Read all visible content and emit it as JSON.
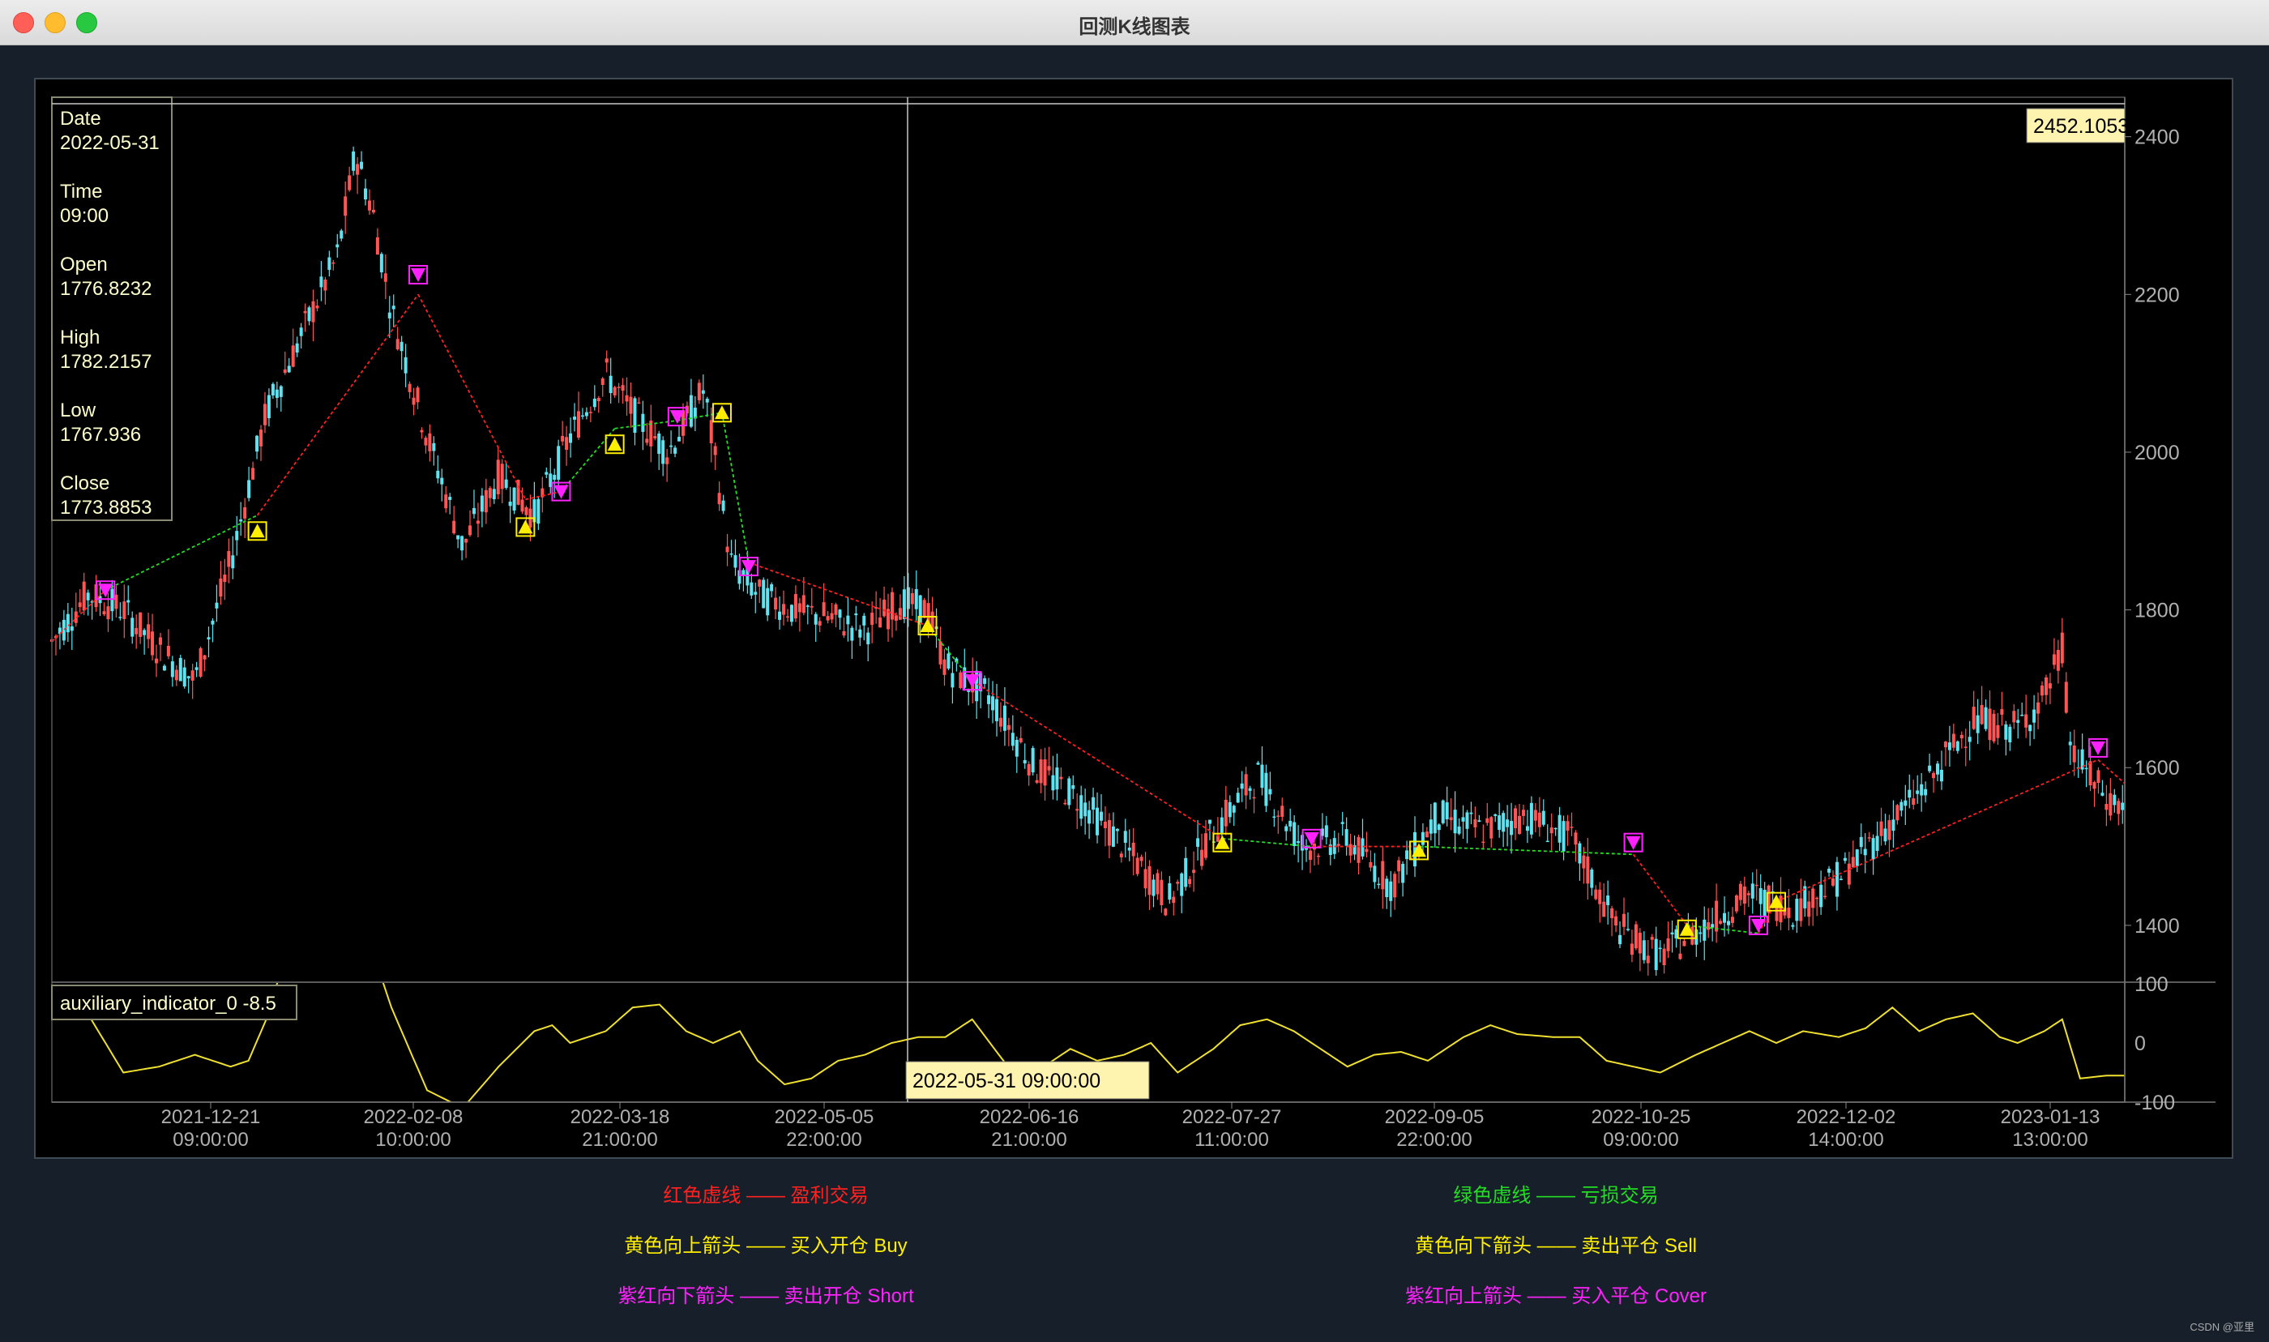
{
  "window": {
    "title": "回测K线图表",
    "traffic_lights": {
      "close": "#ff5f57",
      "minimize": "#febc2e",
      "zoom": "#28c840"
    }
  },
  "colors": {
    "background": "#17202a",
    "plot_background": "#000000",
    "candle_up": "#ff5555",
    "candle_down": "#5fe3f0",
    "profit_line": "#ff2020",
    "loss_line": "#20e020",
    "buy_marker": "#ffee00",
    "short_marker": "#ff22ff",
    "indicator_line": "#f0e030",
    "tooltip_bg": "#fff3b0",
    "axis_text": "#b0b0b0"
  },
  "info_panel": {
    "date_label": "Date",
    "date_value": "2022-05-31",
    "time_label": "Time",
    "time_value": "09:00",
    "open_label": "Open",
    "open_value": "1776.8232",
    "high_label": "High",
    "high_value": "1782.2157",
    "low_label": "Low",
    "low_value": "1767.936",
    "close_label": "Close",
    "close_value": "1773.8853"
  },
  "crosshair": {
    "price_label": "2452.1053",
    "time_label": "2022-05-31 09:00:00"
  },
  "indicator_label": "auxiliary_indicator_0 -8.5",
  "chart_data": {
    "type": "candlestick",
    "x_ticks": [
      {
        "date": "2021-12-21",
        "time": "09:00:00"
      },
      {
        "date": "2022-02-08",
        "time": "10:00:00"
      },
      {
        "date": "2022-03-18",
        "time": "21:00:00"
      },
      {
        "date": "2022-05-05",
        "time": "22:00:00"
      },
      {
        "date": "2022-06-16",
        "time": "21:00:00"
      },
      {
        "date": "2022-07-27",
        "time": "11:00:00"
      },
      {
        "date": "2022-09-05",
        "time": "22:00:00"
      },
      {
        "date": "2022-10-25",
        "time": "09:00:00"
      },
      {
        "date": "2022-12-02",
        "time": "14:00:00"
      },
      {
        "date": "2023-01-13",
        "time": "13:00:00"
      }
    ],
    "price_axis": {
      "ticks": [
        "2400",
        "2200",
        "2000",
        "1800",
        "1600",
        "1400"
      ],
      "range": [
        1330,
        2450
      ]
    },
    "indicator_axis": {
      "ticks": [
        "100",
        "0",
        "-100"
      ],
      "range": [
        -100,
        100
      ]
    },
    "price_path": [
      [
        0,
        1760
      ],
      [
        4,
        1820
      ],
      [
        8,
        1800
      ],
      [
        12,
        1750
      ],
      [
        16,
        1710
      ],
      [
        20,
        1860
      ],
      [
        24,
        2050
      ],
      [
        28,
        2150
      ],
      [
        32,
        2250
      ],
      [
        34,
        2380
      ],
      [
        36,
        2300
      ],
      [
        38,
        2180
      ],
      [
        42,
        2020
      ],
      [
        46,
        1880
      ],
      [
        50,
        1970
      ],
      [
        54,
        1920
      ],
      [
        58,
        2020
      ],
      [
        62,
        2100
      ],
      [
        65,
        2050
      ],
      [
        69,
        2000
      ],
      [
        73,
        2080
      ],
      [
        76,
        1860
      ],
      [
        79,
        1820
      ],
      [
        83,
        1800
      ],
      [
        87,
        1790
      ],
      [
        91,
        1775
      ],
      [
        95,
        1810
      ],
      [
        98,
        1800
      ],
      [
        100,
        1730
      ],
      [
        105,
        1690
      ],
      [
        110,
        1600
      ],
      [
        115,
        1560
      ],
      [
        120,
        1500
      ],
      [
        125,
        1430
      ],
      [
        130,
        1520
      ],
      [
        135,
        1590
      ],
      [
        140,
        1500
      ],
      [
        145,
        1510
      ],
      [
        150,
        1450
      ],
      [
        155,
        1540
      ],
      [
        160,
        1520
      ],
      [
        165,
        1540
      ],
      [
        170,
        1510
      ],
      [
        175,
        1400
      ],
      [
        180,
        1360
      ],
      [
        185,
        1400
      ],
      [
        190,
        1440
      ],
      [
        195,
        1420
      ],
      [
        200,
        1460
      ],
      [
        205,
        1520
      ],
      [
        210,
        1580
      ],
      [
        215,
        1660
      ],
      [
        220,
        1650
      ],
      [
        223,
        1690
      ],
      [
        225,
        1750
      ],
      [
        226,
        1620
      ],
      [
        230,
        1560
      ],
      [
        232,
        1550
      ]
    ],
    "trades": [
      {
        "type": "short",
        "i": 6,
        "price": 1825
      },
      {
        "type": "buy",
        "i": 23,
        "price": 1900
      },
      {
        "type": "short",
        "i": 41,
        "price": 2225
      },
      {
        "type": "buy",
        "i": 53,
        "price": 1905
      },
      {
        "type": "short",
        "i": 57,
        "price": 1950
      },
      {
        "type": "buy",
        "i": 63,
        "price": 2010
      },
      {
        "type": "short",
        "i": 70,
        "price": 2045
      },
      {
        "type": "buy",
        "i": 75,
        "price": 2050
      },
      {
        "type": "short",
        "i": 78,
        "price": 1855
      },
      {
        "type": "buy",
        "i": 98,
        "price": 1780
      },
      {
        "type": "short",
        "i": 103,
        "price": 1710
      },
      {
        "type": "buy",
        "i": 131,
        "price": 1505
      },
      {
        "type": "short",
        "i": 141,
        "price": 1510
      },
      {
        "type": "buy",
        "i": 153,
        "price": 1495
      },
      {
        "type": "short",
        "i": 177,
        "price": 1505
      },
      {
        "type": "buy",
        "i": 183,
        "price": 1395
      },
      {
        "type": "short",
        "i": 191,
        "price": 1400
      },
      {
        "type": "buy",
        "i": 193,
        "price": 1430
      },
      {
        "type": "short",
        "i": 229,
        "price": 1625
      }
    ],
    "trade_lines": [
      {
        "from": [
          0,
          1760
        ],
        "to": [
          6,
          1825
        ],
        "result": "profit"
      },
      {
        "from": [
          6,
          1825
        ],
        "to": [
          23,
          1920
        ],
        "result": "loss"
      },
      {
        "from": [
          23,
          1920
        ],
        "to": [
          41,
          2200
        ],
        "result": "profit"
      },
      {
        "from": [
          41,
          2200
        ],
        "to": [
          53,
          1940
        ],
        "result": "profit"
      },
      {
        "from": [
          53,
          1940
        ],
        "to": [
          57,
          1950
        ],
        "result": "profit"
      },
      {
        "from": [
          57,
          1950
        ],
        "to": [
          63,
          2030
        ],
        "result": "loss"
      },
      {
        "from": [
          63,
          2030
        ],
        "to": [
          70,
          2040
        ],
        "result": "loss"
      },
      {
        "from": [
          70,
          2040
        ],
        "to": [
          75,
          2050
        ],
        "result": "loss"
      },
      {
        "from": [
          75,
          2050
        ],
        "to": [
          78,
          1860
        ],
        "result": "loss"
      },
      {
        "from": [
          78,
          1860
        ],
        "to": [
          98,
          1780
        ],
        "result": "profit"
      },
      {
        "from": [
          98,
          1780
        ],
        "to": [
          103,
          1710
        ],
        "result": "loss"
      },
      {
        "from": [
          103,
          1710
        ],
        "to": [
          131,
          1510
        ],
        "result": "profit"
      },
      {
        "from": [
          131,
          1510
        ],
        "to": [
          141,
          1500
        ],
        "result": "loss"
      },
      {
        "from": [
          141,
          1500
        ],
        "to": [
          153,
          1500
        ],
        "result": "profit"
      },
      {
        "from": [
          153,
          1500
        ],
        "to": [
          177,
          1490
        ],
        "result": "loss"
      },
      {
        "from": [
          177,
          1490
        ],
        "to": [
          183,
          1400
        ],
        "result": "profit"
      },
      {
        "from": [
          183,
          1400
        ],
        "to": [
          191,
          1390
        ],
        "result": "loss"
      },
      {
        "from": [
          191,
          1390
        ],
        "to": [
          193,
          1430
        ],
        "result": "profit"
      },
      {
        "from": [
          193,
          1430
        ],
        "to": [
          229,
          1610
        ],
        "result": "profit"
      },
      {
        "from": [
          229,
          1610
        ],
        "to": [
          232,
          1580
        ],
        "result": "profit"
      }
    ],
    "indicator_path": [
      [
        0,
        40
      ],
      [
        4,
        50
      ],
      [
        8,
        -50
      ],
      [
        12,
        -40
      ],
      [
        16,
        -20
      ],
      [
        20,
        -40
      ],
      [
        22,
        -30
      ],
      [
        24,
        40
      ],
      [
        26,
        140
      ],
      [
        30,
        150
      ],
      [
        34,
        110
      ],
      [
        36,
        150
      ],
      [
        38,
        60
      ],
      [
        42,
        -80
      ],
      [
        46,
        -110
      ],
      [
        50,
        -40
      ],
      [
        54,
        20
      ],
      [
        56,
        30
      ],
      [
        58,
        0
      ],
      [
        62,
        20
      ],
      [
        65,
        60
      ],
      [
        68,
        65
      ],
      [
        71,
        20
      ],
      [
        74,
        0
      ],
      [
        77,
        20
      ],
      [
        79,
        -30
      ],
      [
        82,
        -70
      ],
      [
        85,
        -60
      ],
      [
        88,
        -30
      ],
      [
        91,
        -20
      ],
      [
        94,
        0
      ],
      [
        97,
        10
      ],
      [
        100,
        10
      ],
      [
        103,
        40
      ],
      [
        105,
        0
      ],
      [
        108,
        -60
      ],
      [
        111,
        -40
      ],
      [
        114,
        -10
      ],
      [
        117,
        -30
      ],
      [
        120,
        -20
      ],
      [
        123,
        0
      ],
      [
        126,
        -50
      ],
      [
        130,
        -10
      ],
      [
        133,
        30
      ],
      [
        136,
        40
      ],
      [
        139,
        20
      ],
      [
        142,
        -10
      ],
      [
        145,
        -40
      ],
      [
        148,
        -20
      ],
      [
        151,
        -15
      ],
      [
        154,
        -30
      ],
      [
        158,
        10
      ],
      [
        161,
        30
      ],
      [
        164,
        15
      ],
      [
        168,
        10
      ],
      [
        171,
        10
      ],
      [
        174,
        -30
      ],
      [
        177,
        -40
      ],
      [
        180,
        -50
      ],
      [
        184,
        -20
      ],
      [
        187,
        0
      ],
      [
        190,
        20
      ],
      [
        193,
        0
      ],
      [
        196,
        20
      ],
      [
        200,
        10
      ],
      [
        203,
        25
      ],
      [
        206,
        60
      ],
      [
        209,
        20
      ],
      [
        212,
        40
      ],
      [
        215,
        50
      ],
      [
        218,
        10
      ],
      [
        220,
        0
      ],
      [
        223,
        20
      ],
      [
        225,
        40
      ],
      [
        227,
        -60
      ],
      [
        230,
        -55
      ],
      [
        232,
        -55
      ]
    ]
  },
  "legend": [
    {
      "text": "红色虚线 —— 盈利交易",
      "color": "#ff2020",
      "side": "left",
      "row": 0
    },
    {
      "text": "绿色虚线 —— 亏损交易",
      "color": "#22dd22",
      "side": "right",
      "row": 0
    },
    {
      "text": "黄色向上箭头 —— 买入开仓 Buy",
      "color": "#ffee00",
      "side": "left",
      "row": 1
    },
    {
      "text": "黄色向下箭头 —— 卖出平仓 Sell",
      "color": "#ffee00",
      "side": "right",
      "row": 1
    },
    {
      "text": "紫红向下箭头 —— 卖出开仓 Short",
      "color": "#ff22ff",
      "side": "left",
      "row": 2
    },
    {
      "text": "紫红向上箭头 —— 买入平仓 Cover",
      "color": "#ff22ff",
      "side": "right",
      "row": 2
    }
  ],
  "watermark": "CSDN @亚里"
}
